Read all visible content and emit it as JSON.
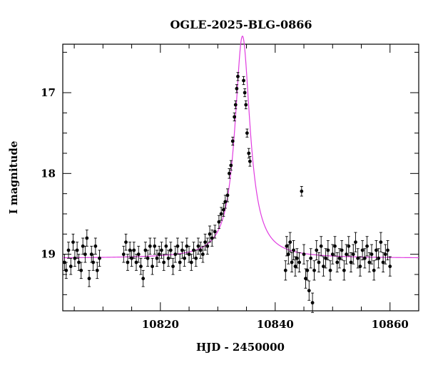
{
  "chart_data": {
    "type": "scatter",
    "title": "OGLE-2025-BLG-0866",
    "xlabel": "HJD - 2450000",
    "ylabel": "I magnitude",
    "xlim": [
      10803,
      10865
    ],
    "ylim": [
      19.7,
      16.4
    ],
    "y_inverted": true,
    "grid": false,
    "x_ticks_major": [
      10820,
      10840,
      10860
    ],
    "x_ticks_minor": [
      10805,
      10810,
      10815,
      10825,
      10830,
      10835,
      10845,
      10850,
      10855
    ],
    "y_ticks_major": [
      17,
      18,
      19
    ],
    "y_ticks_minor": [
      16.5,
      17.25,
      17.5,
      17.75,
      18.25,
      18.5,
      18.75,
      19.25,
      19.5
    ],
    "model_color": "#e03ce0",
    "point_color": "#000000",
    "model": {
      "t0": 10834.3,
      "base_mag": 19.05,
      "peak_mag": 16.3,
      "width_days": 1.6
    },
    "series": [
      {
        "values": [
          [
            10803.3,
            19.1,
            0.1
          ],
          [
            10803.6,
            19.2,
            0.1
          ],
          [
            10804.0,
            18.95,
            0.1
          ],
          [
            10804.4,
            19.15,
            0.1
          ],
          [
            10804.8,
            18.85,
            0.1
          ],
          [
            10805.1,
            19.05,
            0.1
          ],
          [
            10805.5,
            18.95,
            0.1
          ],
          [
            10805.8,
            19.1,
            0.1
          ],
          [
            10806.2,
            19.2,
            0.1
          ],
          [
            10806.5,
            18.9,
            0.1
          ],
          [
            10806.9,
            19.0,
            0.1
          ],
          [
            10807.2,
            18.8,
            0.1
          ],
          [
            10807.6,
            19.3,
            0.1
          ],
          [
            10808.0,
            19.0,
            0.1
          ],
          [
            10808.3,
            19.1,
            0.1
          ],
          [
            10808.7,
            18.9,
            0.1
          ],
          [
            10809.0,
            19.2,
            0.1
          ],
          [
            10809.4,
            19.05,
            0.1
          ],
          [
            10813.6,
            19.0,
            0.1
          ],
          [
            10814.0,
            18.85,
            0.1
          ],
          [
            10814.3,
            19.1,
            0.1
          ],
          [
            10814.7,
            18.95,
            0.1
          ],
          [
            10815.0,
            19.05,
            0.1
          ],
          [
            10815.4,
            18.95,
            0.1
          ],
          [
            10815.8,
            19.1,
            0.1
          ],
          [
            10816.2,
            19.0,
            0.1
          ],
          [
            10816.6,
            19.15,
            0.1
          ],
          [
            10817.0,
            19.3,
            0.1
          ],
          [
            10817.4,
            18.95,
            0.1
          ],
          [
            10817.8,
            19.05,
            0.1
          ],
          [
            10818.2,
            18.9,
            0.1
          ],
          [
            10818.6,
            19.15,
            0.1
          ],
          [
            10819.0,
            18.9,
            0.1
          ],
          [
            10819.4,
            19.05,
            0.1
          ],
          [
            10819.8,
            19.0,
            0.1
          ],
          [
            10820.2,
            18.95,
            0.1
          ],
          [
            10820.6,
            19.1,
            0.1
          ],
          [
            10821.0,
            18.9,
            0.1
          ],
          [
            10821.4,
            19.05,
            0.1
          ],
          [
            10821.8,
            18.95,
            0.1
          ],
          [
            10822.2,
            19.15,
            0.1
          ],
          [
            10822.6,
            19.0,
            0.1
          ],
          [
            10823.0,
            18.9,
            0.1
          ],
          [
            10823.4,
            19.1,
            0.1
          ],
          [
            10823.8,
            18.95,
            0.1
          ],
          [
            10824.2,
            19.05,
            0.1
          ],
          [
            10824.6,
            18.9,
            0.1
          ],
          [
            10825.0,
            19.0,
            0.1
          ],
          [
            10825.4,
            19.1,
            0.1
          ],
          [
            10825.8,
            18.95,
            0.1
          ],
          [
            10826.2,
            19.05,
            0.1
          ],
          [
            10826.6,
            18.9,
            0.1
          ],
          [
            10827.0,
            18.95,
            0.1
          ],
          [
            10827.4,
            19.0,
            0.1
          ],
          [
            10827.8,
            18.85,
            0.1
          ],
          [
            10828.2,
            18.9,
            0.1
          ],
          [
            10828.6,
            18.75,
            0.1
          ],
          [
            10829.0,
            18.8,
            0.1
          ],
          [
            10829.5,
            18.72,
            0.08
          ],
          [
            10830.2,
            18.6,
            0.08
          ],
          [
            10830.6,
            18.5,
            0.08
          ],
          [
            10831.0,
            18.45,
            0.08
          ],
          [
            10831.3,
            18.35,
            0.08
          ],
          [
            10831.7,
            18.27,
            0.08
          ],
          [
            10832.0,
            18.0,
            0.06
          ],
          [
            10832.3,
            17.9,
            0.06
          ],
          [
            10832.6,
            17.6,
            0.05
          ],
          [
            10832.9,
            17.3,
            0.05
          ],
          [
            10833.1,
            17.15,
            0.05
          ],
          [
            10833.3,
            16.95,
            0.05
          ],
          [
            10833.5,
            16.8,
            0.05
          ],
          [
            10834.5,
            16.85,
            0.05
          ],
          [
            10834.7,
            17.0,
            0.05
          ],
          [
            10834.9,
            17.15,
            0.05
          ],
          [
            10835.1,
            17.5,
            0.05
          ],
          [
            10835.4,
            17.75,
            0.06
          ],
          [
            10835.6,
            17.85,
            0.06
          ],
          [
            10841.8,
            19.2,
            0.12
          ],
          [
            10842.0,
            18.9,
            0.12
          ],
          [
            10842.3,
            19.0,
            0.12
          ],
          [
            10842.6,
            18.85,
            0.12
          ],
          [
            10842.9,
            19.1,
            0.12
          ],
          [
            10843.2,
            18.95,
            0.12
          ],
          [
            10843.5,
            19.15,
            0.12
          ],
          [
            10843.8,
            19.05,
            0.12
          ],
          [
            10844.2,
            19.1,
            0.12
          ],
          [
            10844.6,
            18.22,
            0.06
          ],
          [
            10845.0,
            19.0,
            0.12
          ],
          [
            10845.3,
            19.3,
            0.12
          ],
          [
            10845.6,
            19.2,
            0.12
          ],
          [
            10845.9,
            19.45,
            0.12
          ],
          [
            10846.2,
            19.05,
            0.12
          ],
          [
            10846.5,
            19.6,
            0.12
          ],
          [
            10846.8,
            19.2,
            0.12
          ],
          [
            10847.2,
            18.95,
            0.12
          ],
          [
            10847.6,
            19.1,
            0.12
          ],
          [
            10848.0,
            18.9,
            0.12
          ],
          [
            10848.4,
            19.15,
            0.12
          ],
          [
            10848.8,
            19.05,
            0.12
          ],
          [
            10849.2,
            18.95,
            0.12
          ],
          [
            10849.6,
            19.2,
            0.12
          ],
          [
            10850.0,
            19.0,
            0.12
          ],
          [
            10850.4,
            18.9,
            0.12
          ],
          [
            10850.8,
            19.1,
            0.12
          ],
          [
            10851.2,
            19.05,
            0.12
          ],
          [
            10851.6,
            18.95,
            0.12
          ],
          [
            10852.0,
            19.2,
            0.12
          ],
          [
            10852.4,
            19.0,
            0.12
          ],
          [
            10852.8,
            18.9,
            0.12
          ],
          [
            10853.2,
            19.1,
            0.12
          ],
          [
            10853.6,
            19.0,
            0.12
          ],
          [
            10854.0,
            18.85,
            0.12
          ],
          [
            10854.4,
            19.05,
            0.12
          ],
          [
            10854.8,
            19.15,
            0.12
          ],
          [
            10855.2,
            18.95,
            0.12
          ],
          [
            10855.6,
            19.05,
            0.12
          ],
          [
            10856.0,
            18.9,
            0.12
          ],
          [
            10856.4,
            19.1,
            0.12
          ],
          [
            10856.8,
            19.0,
            0.12
          ],
          [
            10857.2,
            19.2,
            0.12
          ],
          [
            10857.6,
            18.95,
            0.12
          ],
          [
            10858.0,
            19.05,
            0.12
          ],
          [
            10858.4,
            18.85,
            0.12
          ],
          [
            10858.8,
            19.1,
            0.12
          ],
          [
            10859.2,
            19.0,
            0.12
          ],
          [
            10859.6,
            18.95,
            0.12
          ],
          [
            10860.0,
            19.15,
            0.12
          ]
        ]
      }
    ]
  }
}
